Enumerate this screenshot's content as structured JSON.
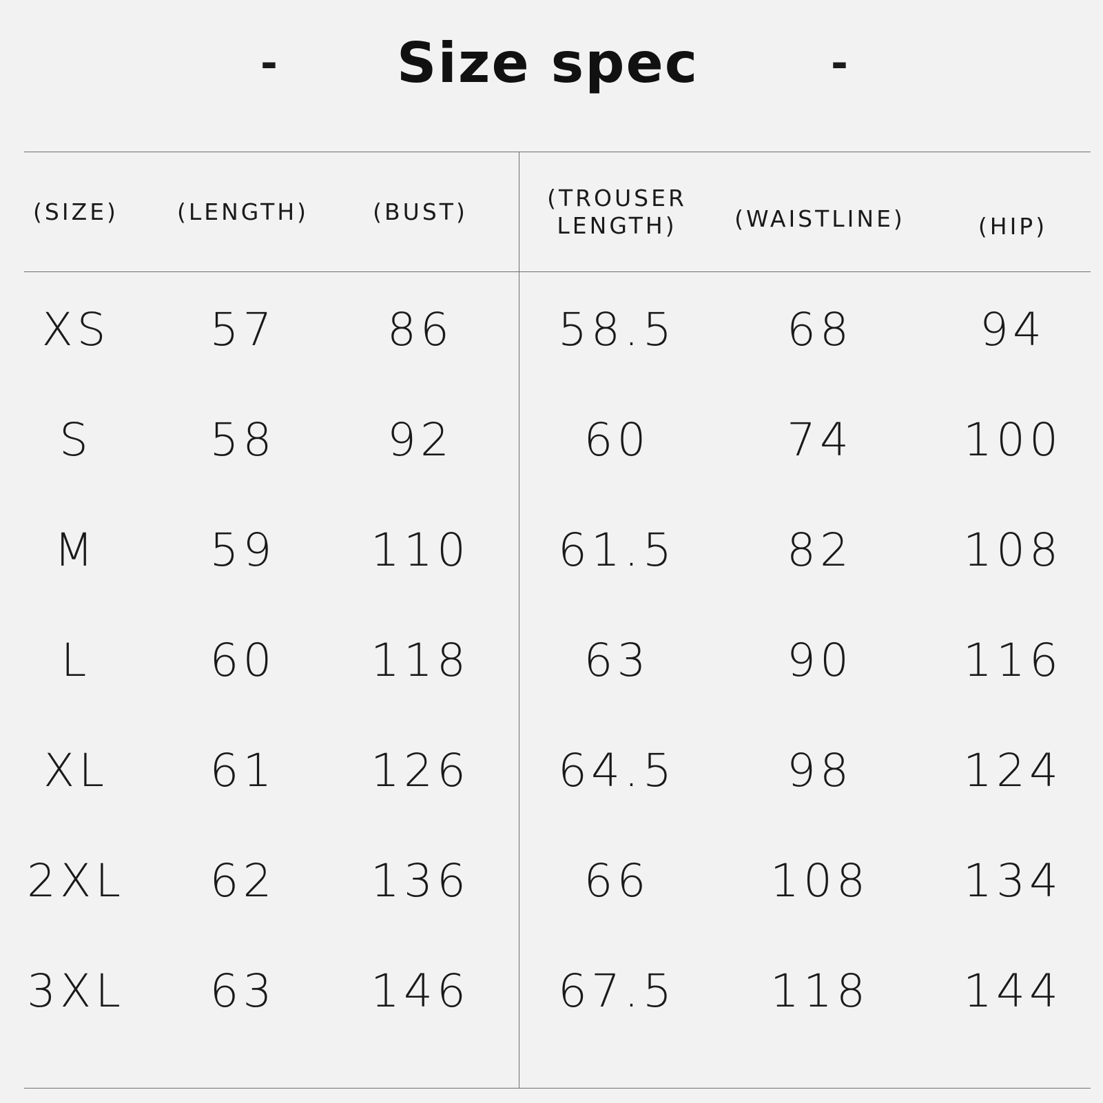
{
  "title": "Size spec",
  "dash_left": "-",
  "dash_right": "-",
  "headers": [
    "(SIZE)",
    "(LENGTH)",
    "(BUST)",
    "(TROUSER\nLENGTH)",
    "(WAISTLINE)",
    "(HIP)"
  ],
  "rows": [
    [
      "XS",
      "57",
      "86",
      "58.5",
      "68",
      "94"
    ],
    [
      "S",
      "58",
      "92",
      "60",
      "74",
      "100"
    ],
    [
      "M",
      "59",
      "110",
      "61.5",
      "82",
      "108"
    ],
    [
      "L",
      "60",
      "118",
      "63",
      "90",
      "116"
    ],
    [
      "XL",
      "61",
      "126",
      "64.5",
      "98",
      "124"
    ],
    [
      "2XL",
      "62",
      "136",
      "66",
      "108",
      "134"
    ],
    [
      "3XL",
      "63",
      "146",
      "67.5",
      "118",
      "144"
    ]
  ]
}
